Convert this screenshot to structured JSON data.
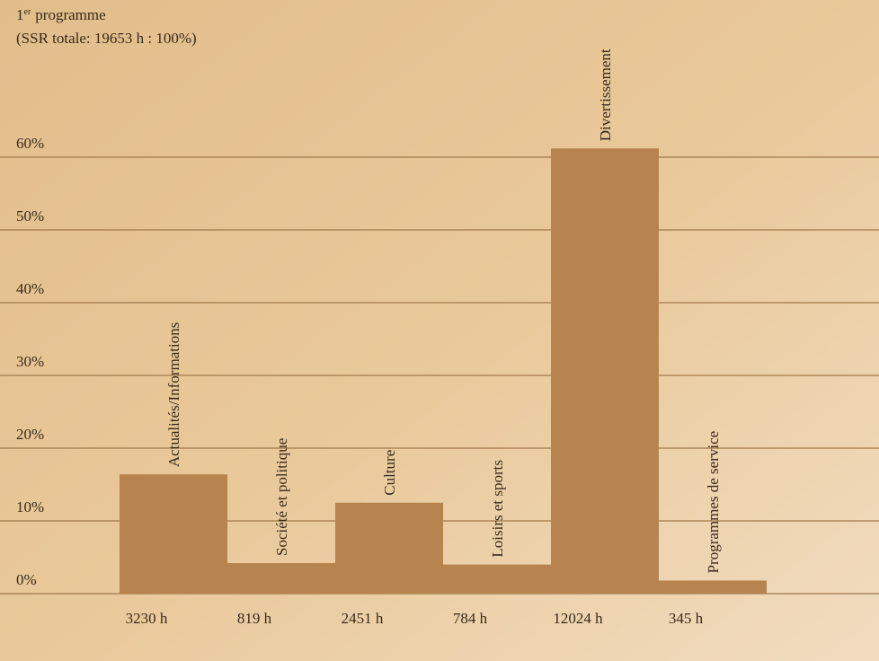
{
  "chart_data": {
    "type": "bar",
    "title_number": "1",
    "title_superscript": "er",
    "title_text": "programme",
    "subtitle": "(SSR totale: 19653 h : 100%)",
    "categories": [
      "Actualités/Informations",
      "Société et politique",
      "Culture",
      "Loisirs et sports",
      "Divertissement",
      "Programmes de service"
    ],
    "values": [
      16.4,
      4.2,
      12.5,
      4.0,
      61.2,
      1.8
    ],
    "hour_labels": [
      "3230 h",
      "819 h",
      "2451 h",
      "784 h",
      "12024 h",
      "345 h"
    ],
    "color": "#b7844f",
    "ylim": [
      0,
      60
    ],
    "yticks": [
      {
        "value": 0,
        "label": "0%"
      },
      {
        "value": 10,
        "label": "10%"
      },
      {
        "value": 20,
        "label": "20%"
      },
      {
        "value": 30,
        "label": "30%"
      },
      {
        "value": 40,
        "label": "40%"
      },
      {
        "value": 50,
        "label": "50%"
      },
      {
        "value": 60,
        "label": "60%"
      }
    ],
    "grid": true
  }
}
